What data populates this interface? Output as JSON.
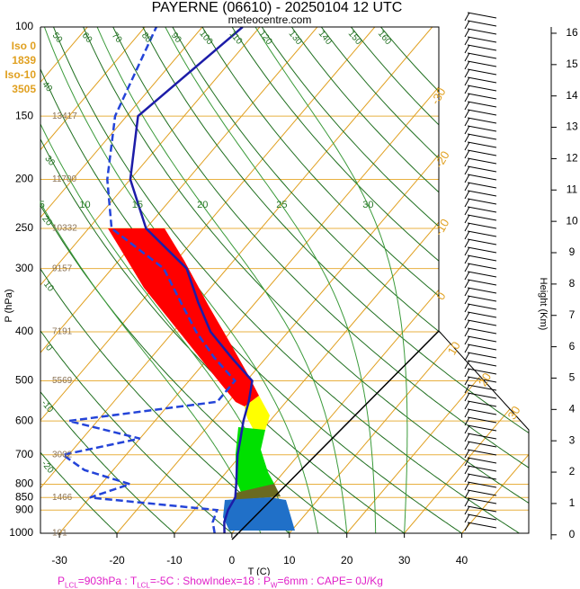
{
  "chart_data": {
    "type": "skewt",
    "title": "PAYERNE (06610) - 20250104 12 UTC",
    "subtitle": "meteocentre.com",
    "y_label": "P (hPa)",
    "x_label": "T (C)",
    "y2_label": "Height (Km)",
    "ylim": [
      1000,
      100
    ],
    "log_y": true,
    "yticks": [
      100,
      150,
      200,
      250,
      300,
      400,
      500,
      600,
      700,
      800,
      850,
      900,
      1000
    ],
    "xlim": [
      -33.3,
      36
    ],
    "xticks": [
      -30,
      -20,
      -10,
      0,
      10,
      20,
      30,
      40
    ],
    "y2lim": [
      -0.15,
      16.2
    ],
    "y2ticks": [
      0,
      1,
      2,
      3,
      4,
      5,
      6,
      7,
      8,
      9,
      10,
      11,
      12,
      13,
      14,
      15,
      16
    ],
    "pressure": [
      1000,
      950,
      900,
      850,
      800,
      750,
      700,
      650,
      600,
      550,
      500,
      450,
      400,
      350,
      300,
      250,
      200,
      150,
      100
    ],
    "series": [
      {
        "color": "#1c1ca8",
        "dashed": false,
        "values": [
          -1.3,
          -3,
          -4.1,
          -4.7,
          -6.5,
          -8.5,
          -10.6,
          -12.5,
          -14.6,
          -16.5,
          -19,
          -26,
          -33.5,
          -40,
          -47,
          -60,
          -70,
          -78,
          -73
        ]
      },
      {
        "color": "#2444d8",
        "dashed": true,
        "values": [
          -3,
          -5,
          -6,
          -30,
          -25,
          -35,
          -41,
          -30,
          -45,
          -22,
          -22,
          -29,
          -36,
          -43,
          -51,
          -66,
          -74,
          -82,
          -88
        ]
      }
    ],
    "isotherms": [
      -100,
      -90,
      -80,
      -70,
      -60,
      -50,
      -40,
      -30,
      -20,
      -10,
      0,
      10,
      20,
      30,
      40
    ],
    "isotherm_labels": [
      -30,
      -20,
      -10,
      0,
      10,
      20,
      30
    ],
    "dry_adiabats": [
      -20,
      -10,
      0,
      10,
      20,
      30,
      40,
      50,
      60,
      70,
      80,
      90,
      100,
      110,
      120,
      130,
      140,
      150,
      160
    ],
    "moist_adiabats": [
      5,
      10,
      15,
      20,
      25,
      30
    ],
    "level_heights": [
      {
        "p": 150,
        "z": 13417
      },
      {
        "p": 200,
        "z": 11700
      },
      {
        "p": 250,
        "z": 10332
      },
      {
        "p": 300,
        "z": 9157
      },
      {
        "p": 400,
        "z": 7191
      },
      {
        "p": 500,
        "z": 5569
      },
      {
        "p": 700,
        "z": 3002
      },
      {
        "p": 850,
        "z": 1466
      },
      {
        "p": 1000,
        "z": 101
      }
    ],
    "freezing_levels": [
      "Iso 0",
      "1839",
      "Iso-10",
      "3505"
    ],
    "footer": [
      {
        "text": "P"
      },
      {
        "sub": "LCL"
      },
      {
        "text": "=903hPa : T"
      },
      {
        "sub": "LCL"
      },
      {
        "text": "=-5C : ShowIndex=18 : P"
      },
      {
        "sub": "W"
      },
      {
        "text": "=6mm : CAPE= 0J/Kg"
      }
    ]
  }
}
